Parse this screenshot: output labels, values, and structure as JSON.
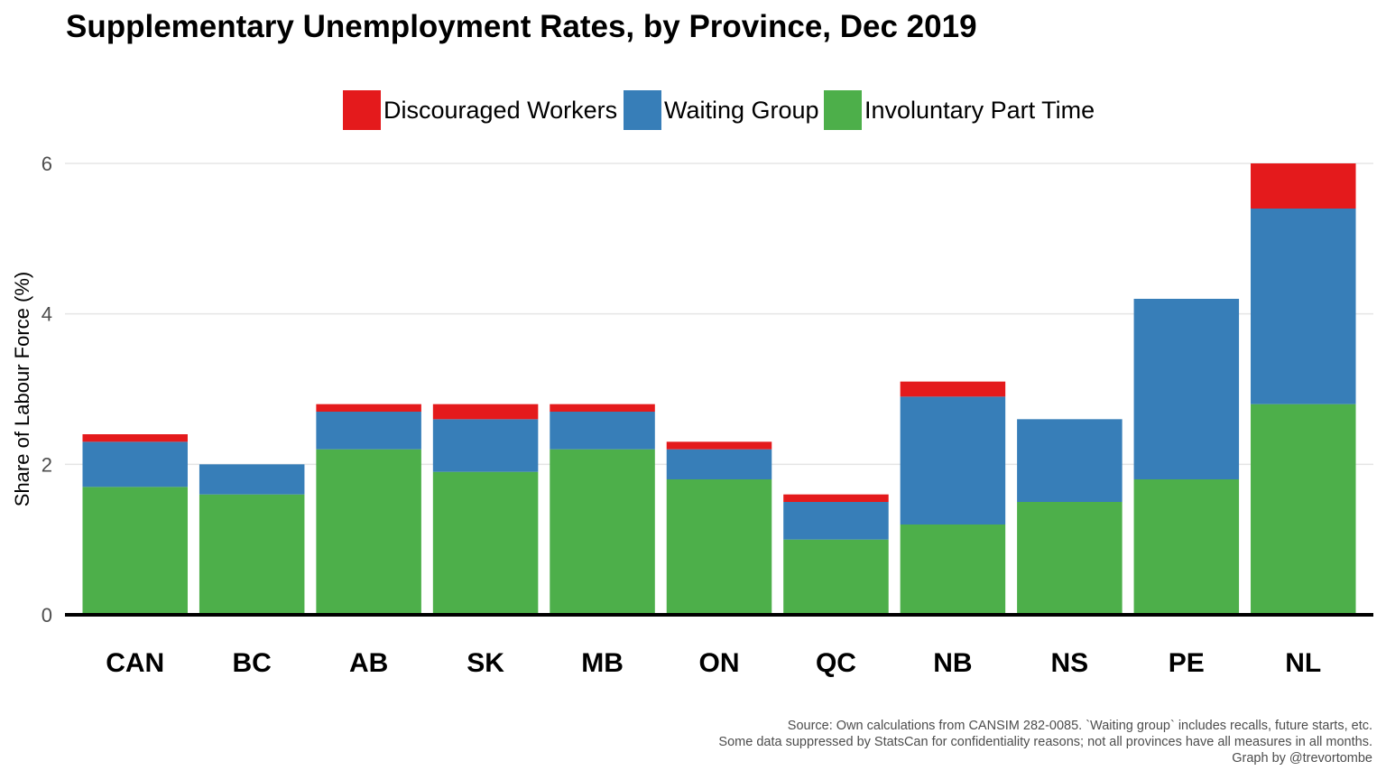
{
  "chart_data": {
    "type": "bar",
    "stacked": true,
    "title": "Supplementary Unemployment Rates, by Province, Dec 2019",
    "ylabel": "Share of Labour Force (%)",
    "xlabel": "",
    "categories": [
      "CAN",
      "BC",
      "AB",
      "SK",
      "MB",
      "ON",
      "QC",
      "NB",
      "NS",
      "PE",
      "NL"
    ],
    "series": [
      {
        "name": "Involuntary Part Time",
        "color": "#4daf4a",
        "values": [
          1.7,
          1.6,
          2.2,
          1.9,
          2.2,
          1.8,
          1.0,
          1.2,
          1.5,
          1.8,
          2.8
        ]
      },
      {
        "name": "Waiting Group",
        "color": "#377eb8",
        "values": [
          0.6,
          0.4,
          0.5,
          0.7,
          0.5,
          0.4,
          0.5,
          1.7,
          1.1,
          2.4,
          2.6
        ]
      },
      {
        "name": "Discouraged Workers",
        "color": "#e41a1c",
        "values": [
          0.1,
          0.0,
          0.1,
          0.2,
          0.1,
          0.1,
          0.1,
          0.2,
          0.0,
          0.0,
          0.6
        ]
      }
    ],
    "legend_order": [
      "Discouraged Workers",
      "Waiting Group",
      "Involuntary Part Time"
    ],
    "legend_position": "top",
    "ylim": [
      0,
      6
    ],
    "yticks": [
      0,
      2,
      4,
      6
    ],
    "grid": true
  },
  "caption": {
    "line1": "Source: Own calculations from CANSIM 282-0085. `Waiting group` includes recalls, future starts, etc.",
    "line2": "Some data suppressed by StatsCan for confidentiality reasons; not all provinces have all measures in all months.",
    "line3": "Graph by @trevortombe"
  }
}
